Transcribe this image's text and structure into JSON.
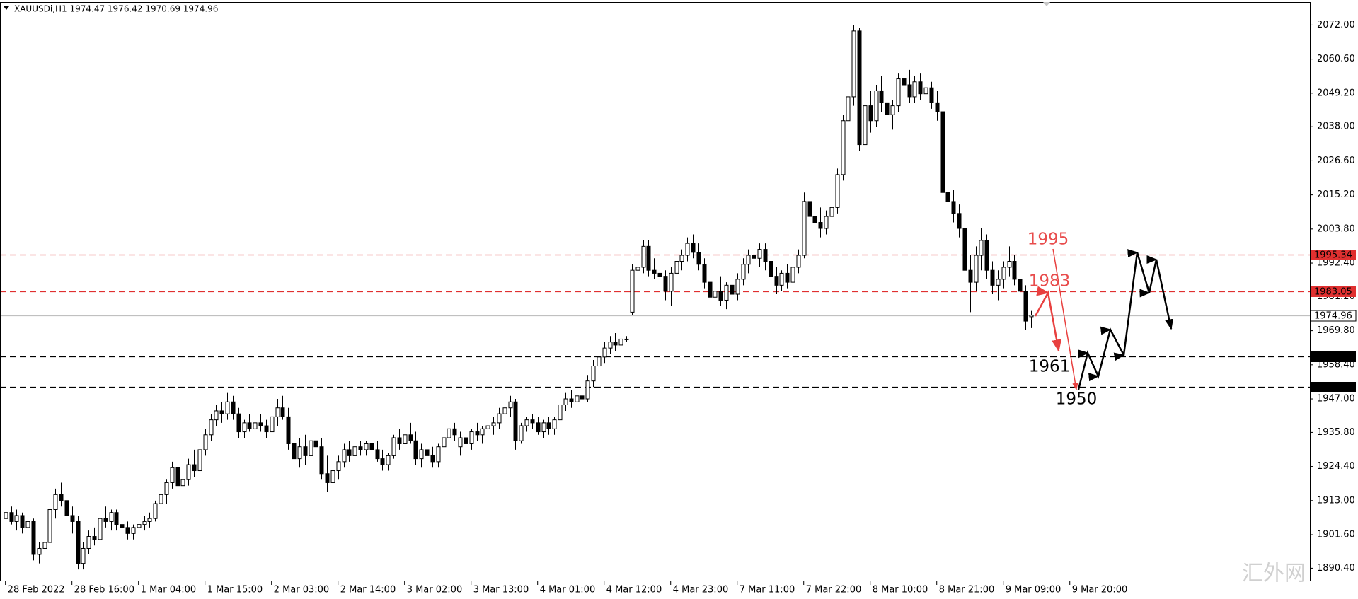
{
  "chart_data": {
    "type": "candlestick",
    "title": "XAUUSDi,H1  1974.47 1976.42 1970.69 1974.96",
    "x_labels": [
      "28 Feb 2022",
      "28 Feb 16:00",
      "1 Mar 04:00",
      "1 Mar 15:00",
      "2 Mar 03:00",
      "2 Mar 14:00",
      "3 Mar 02:00",
      "3 Mar 13:00",
      "4 Mar 01:00",
      "4 Mar 12:00",
      "4 Mar 23:00",
      "7 Mar 11:00",
      "7 Mar 22:00",
      "8 Mar 10:00",
      "8 Mar 21:00",
      "9 Mar 09:00",
      "9 Mar 20:00"
    ],
    "up_color": "#ffffff",
    "down_color": "#000000",
    "ylim": [
      1886,
      2079.5
    ],
    "yticks": [
      {
        "value": 2072,
        "label": "2072.00"
      },
      {
        "value": 2060.6,
        "label": "2060.60"
      },
      {
        "value": 2049.2,
        "label": "2049.20"
      },
      {
        "value": 2038,
        "label": "2038.00"
      },
      {
        "value": 2026.6,
        "label": "2026.60"
      },
      {
        "value": 2015.2,
        "label": "2015.20"
      },
      {
        "value": 2003.8,
        "label": "2003.80"
      },
      {
        "value": 1992.4,
        "label": "1992.40"
      },
      {
        "value": 1981.2,
        "label": "1981.20"
      },
      {
        "value": 1969.8,
        "label": "1969.80"
      },
      {
        "value": 1958.4,
        "label": "1958.40"
      },
      {
        "value": 1947,
        "label": "1947.00"
      },
      {
        "value": 1935.8,
        "label": "1935.80"
      },
      {
        "value": 1924.4,
        "label": "1924.40"
      },
      {
        "value": 1913,
        "label": "1913.00"
      },
      {
        "value": 1901.6,
        "label": "1901.60"
      },
      {
        "value": 1890.4,
        "label": "1890.40"
      }
    ],
    "levels": [
      {
        "value": 1995.34,
        "color": "#e03030",
        "style": "dashed"
      },
      {
        "value": 1983.05,
        "color": "#e03030",
        "style": "dashed"
      },
      {
        "value": 1974.96,
        "color": "#c0c0c0",
        "style": "solid"
      },
      {
        "value": 1961.08,
        "color": "#000000",
        "style": "dashed"
      },
      {
        "value": 1950.93,
        "color": "#000000",
        "style": "dashed"
      }
    ],
    "annotations": [
      {
        "text": "1995",
        "color": "#e84c4c"
      },
      {
        "text": "1983",
        "color": "#e84c4c"
      },
      {
        "text": "1961",
        "color": "#000000"
      },
      {
        "text": "1950",
        "color": "#000000"
      }
    ],
    "candles": [
      [
        1907,
        1910,
        1904,
        1909
      ],
      [
        1909,
        1911,
        1905,
        1906
      ],
      [
        1906,
        1910,
        1903,
        1908
      ],
      [
        1908,
        1909,
        1902,
        1904
      ],
      [
        1904,
        1908,
        1900,
        1906
      ],
      [
        1906,
        1907,
        1893,
        1895
      ],
      [
        1895,
        1899,
        1892,
        1897
      ],
      [
        1897,
        1901,
        1894,
        1899
      ],
      [
        1899,
        1912,
        1898,
        1910
      ],
      [
        1910,
        1917,
        1907,
        1915
      ],
      [
        1915,
        1919,
        1911,
        1913
      ],
      [
        1913,
        1915,
        1905,
        1908
      ],
      [
        1908,
        1911,
        1902,
        1906
      ],
      [
        1906,
        1908,
        1890,
        1892
      ],
      [
        1892,
        1899,
        1890,
        1897
      ],
      [
        1897,
        1903,
        1895,
        1901
      ],
      [
        1901,
        1904,
        1898,
        1900
      ],
      [
        1900,
        1908,
        1899,
        1907
      ],
      [
        1907,
        1911,
        1904,
        1906
      ],
      [
        1906,
        1910,
        1903,
        1909
      ],
      [
        1909,
        1910,
        1903,
        1905
      ],
      [
        1905,
        1908,
        1902,
        1904
      ],
      [
        1904,
        1906,
        1900,
        1902
      ],
      [
        1902,
        1905,
        1900,
        1904
      ],
      [
        1904,
        1907,
        1902,
        1905
      ],
      [
        1905,
        1908,
        1903,
        1906
      ],
      [
        1906,
        1909,
        1904,
        1907
      ],
      [
        1907,
        1913,
        1906,
        1912
      ],
      [
        1912,
        1917,
        1910,
        1915
      ],
      [
        1915,
        1920,
        1912,
        1919
      ],
      [
        1919,
        1926,
        1917,
        1924
      ],
      [
        1924,
        1927,
        1916,
        1918
      ],
      [
        1918,
        1922,
        1913,
        1920
      ],
      [
        1920,
        1927,
        1918,
        1925
      ],
      [
        1925,
        1930,
        1921,
        1923
      ],
      [
        1923,
        1932,
        1922,
        1930
      ],
      [
        1930,
        1937,
        1928,
        1935
      ],
      [
        1935,
        1942,
        1933,
        1940
      ],
      [
        1940,
        1945,
        1938,
        1943
      ],
      [
        1943,
        1946,
        1939,
        1942
      ],
      [
        1942,
        1949,
        1940,
        1946
      ],
      [
        1946,
        1948,
        1940,
        1942
      ],
      [
        1942,
        1944,
        1934,
        1936
      ],
      [
        1936,
        1940,
        1934,
        1939
      ],
      [
        1939,
        1942,
        1936,
        1937
      ],
      [
        1937,
        1941,
        1935,
        1939
      ],
      [
        1939,
        1942,
        1936,
        1938
      ],
      [
        1938,
        1940,
        1934,
        1936
      ],
      [
        1936,
        1942,
        1935,
        1941
      ],
      [
        1941,
        1947,
        1938,
        1944
      ],
      [
        1944,
        1948,
        1940,
        1941
      ],
      [
        1941,
        1944,
        1930,
        1932
      ],
      [
        1932,
        1936,
        1913,
        1927
      ],
      [
        1927,
        1934,
        1924,
        1931
      ],
      [
        1931,
        1935,
        1925,
        1928
      ],
      [
        1928,
        1935,
        1926,
        1933
      ],
      [
        1933,
        1937,
        1929,
        1931
      ],
      [
        1931,
        1934,
        1920,
        1922
      ],
      [
        1922,
        1928,
        1916,
        1919
      ],
      [
        1919,
        1925,
        1916,
        1923
      ],
      [
        1923,
        1928,
        1920,
        1926
      ],
      [
        1926,
        1932,
        1924,
        1930
      ],
      [
        1930,
        1933,
        1926,
        1928
      ],
      [
        1928,
        1932,
        1926,
        1931
      ],
      [
        1931,
        1933,
        1928,
        1930
      ],
      [
        1930,
        1933,
        1928,
        1932
      ],
      [
        1932,
        1934,
        1929,
        1930
      ],
      [
        1930,
        1933,
        1926,
        1927
      ],
      [
        1927,
        1930,
        1923,
        1925
      ],
      [
        1925,
        1929,
        1923,
        1928
      ],
      [
        1928,
        1935,
        1927,
        1934
      ],
      [
        1934,
        1937,
        1930,
        1932
      ],
      [
        1932,
        1936,
        1929,
        1935
      ],
      [
        1935,
        1939,
        1932,
        1933
      ],
      [
        1933,
        1936,
        1925,
        1927
      ],
      [
        1927,
        1932,
        1924,
        1930
      ],
      [
        1930,
        1934,
        1926,
        1928
      ],
      [
        1928,
        1931,
        1924,
        1926
      ],
      [
        1926,
        1932,
        1924,
        1931
      ],
      [
        1931,
        1936,
        1929,
        1934
      ],
      [
        1934,
        1939,
        1932,
        1937
      ],
      [
        1937,
        1939,
        1933,
        1935
      ],
      [
        1931,
        1936,
        1928,
        1934
      ],
      [
        1934,
        1938,
        1930,
        1932
      ],
      [
        1932,
        1937,
        1930,
        1936
      ],
      [
        1936,
        1939,
        1933,
        1935
      ],
      [
        1935,
        1938,
        1932,
        1937
      ],
      [
        1937,
        1940,
        1935,
        1938
      ],
      [
        1938,
        1941,
        1935,
        1939
      ],
      [
        1939,
        1944,
        1937,
        1942
      ],
      [
        1942,
        1946,
        1940,
        1944
      ],
      [
        1944,
        1948,
        1941,
        1946
      ],
      [
        1946,
        1947,
        1930,
        1933
      ],
      [
        1933,
        1939,
        1932,
        1938
      ],
      [
        1938,
        1941,
        1936,
        1940
      ],
      [
        1940,
        1942,
        1937,
        1939
      ],
      [
        1939,
        1941,
        1935,
        1936
      ],
      [
        1936,
        1940,
        1934,
        1939
      ],
      [
        1939,
        1941,
        1935,
        1937
      ],
      [
        1937,
        1941,
        1935,
        1940
      ],
      [
        1940,
        1947,
        1939,
        1945
      ],
      [
        1945,
        1949,
        1943,
        1947
      ],
      [
        1947,
        1950,
        1944,
        1946
      ],
      [
        1946,
        1950,
        1944,
        1948
      ],
      [
        1948,
        1952,
        1945,
        1947
      ],
      [
        1947,
        1955,
        1946,
        1953
      ],
      [
        1953,
        1960,
        1951,
        1958
      ],
      [
        1958,
        1963,
        1956,
        1961
      ],
      [
        1961,
        1966,
        1959,
        1964
      ],
      [
        1964,
        1968,
        1962,
        1966
      ],
      [
        1966,
        1969,
        1963,
        1965
      ],
      [
        1965,
        1968,
        1963,
        1967
      ],
      [
        1967,
        1968,
        1966,
        1967
      ],
      [
        1976,
        1992,
        1975,
        1990
      ],
      [
        1990,
        1997,
        1988,
        1991
      ],
      [
        1991,
        2000,
        1989,
        1998
      ],
      [
        1998,
        2000,
        1988,
        1990
      ],
      [
        1990,
        1994,
        1987,
        1989
      ],
      [
        1989,
        1993,
        1985,
        1988
      ],
      [
        1988,
        1990,
        1980,
        1983
      ],
      [
        1983,
        1991,
        1978,
        1989
      ],
      [
        1989,
        1995,
        1986,
        1993
      ],
      [
        1993,
        1997,
        1990,
        1995
      ],
      [
        1995,
        2001,
        1993,
        1999
      ],
      [
        1999,
        2002,
        1994,
        1996
      ],
      [
        1996,
        1999,
        1990,
        1992
      ],
      [
        1992,
        1994,
        1984,
        1986
      ],
      [
        1986,
        1990,
        1979,
        1981
      ],
      [
        1981,
        1986,
        1961,
        1983
      ],
      [
        1983,
        1988,
        1978,
        1980
      ],
      [
        1980,
        1986,
        1977,
        1985
      ],
      [
        1985,
        1990,
        1978,
        1982
      ],
      [
        1982,
        1989,
        1980,
        1987
      ],
      [
        1987,
        1994,
        1985,
        1992
      ],
      [
        1992,
        1997,
        1989,
        1995
      ],
      [
        1995,
        1998,
        1992,
        1994
      ],
      [
        1994,
        1999,
        1991,
        1997
      ],
      [
        1997,
        1999,
        1990,
        1993
      ],
      [
        1993,
        1996,
        1986,
        1988
      ],
      [
        1988,
        1991,
        1982,
        1985
      ],
      [
        1985,
        1990,
        1983,
        1989
      ],
      [
        1989,
        1992,
        1984,
        1986
      ],
      [
        1986,
        1993,
        1985,
        1991
      ],
      [
        1991,
        1997,
        1989,
        1995
      ],
      [
        1995,
        2016,
        1994,
        2013
      ],
      [
        2013,
        2017,
        2004,
        2008
      ],
      [
        2008,
        2013,
        2003,
        2006
      ],
      [
        2006,
        2011,
        2001,
        2004
      ],
      [
        2004,
        2010,
        2002,
        2008
      ],
      [
        2008,
        2013,
        2005,
        2011
      ],
      [
        2011,
        2024,
        2009,
        2022
      ],
      [
        2022,
        2042,
        2020,
        2040
      ],
      [
        2040,
        2058,
        2035,
        2048
      ],
      [
        2048,
        2072,
        2045,
        2070
      ],
      [
        2070,
        2071,
        2030,
        2032
      ],
      [
        2032,
        2048,
        2030,
        2045
      ],
      [
        2045,
        2050,
        2036,
        2040
      ],
      [
        2040,
        2052,
        2038,
        2050
      ],
      [
        2050,
        2055,
        2043,
        2046
      ],
      [
        2046,
        2050,
        2040,
        2042
      ],
      [
        2042,
        2047,
        2037,
        2045
      ],
      [
        2045,
        2056,
        2043,
        2054
      ],
      [
        2054,
        2059,
        2050,
        2052
      ],
      [
        2052,
        2057,
        2046,
        2048
      ],
      [
        2048,
        2055,
        2046,
        2053
      ],
      [
        2053,
        2056,
        2047,
        2049
      ],
      [
        2049,
        2054,
        2046,
        2051
      ],
      [
        2051,
        2053,
        2044,
        2046
      ],
      [
        2046,
        2050,
        2040,
        2043
      ],
      [
        2043,
        2045,
        2013,
        2016
      ],
      [
        2016,
        2020,
        2010,
        2013
      ],
      [
        2013,
        2017,
        2006,
        2009
      ],
      [
        2009,
        2012,
        2001,
        2004
      ],
      [
        2004,
        2007,
        1988,
        1990
      ],
      [
        1990,
        1995,
        1976,
        1986
      ],
      [
        1986,
        1998,
        1983,
        1995
      ],
      [
        1995,
        2004,
        1990,
        2000
      ],
      [
        2000,
        2002,
        1987,
        1990
      ],
      [
        1990,
        1993,
        1982,
        1985
      ],
      [
        1985,
        1990,
        1980,
        1987
      ],
      [
        1987,
        1993,
        1984,
        1991
      ],
      [
        1991,
        1998,
        1988,
        1993
      ],
      [
        1993,
        1995,
        1985,
        1987
      ],
      [
        1987,
        1991,
        1980,
        1983
      ],
      [
        1983,
        1985,
        1970,
        1973
      ],
      [
        1974.47,
        1976.42,
        1970.69,
        1974.96
      ]
    ]
  },
  "watermark": "汇外网"
}
